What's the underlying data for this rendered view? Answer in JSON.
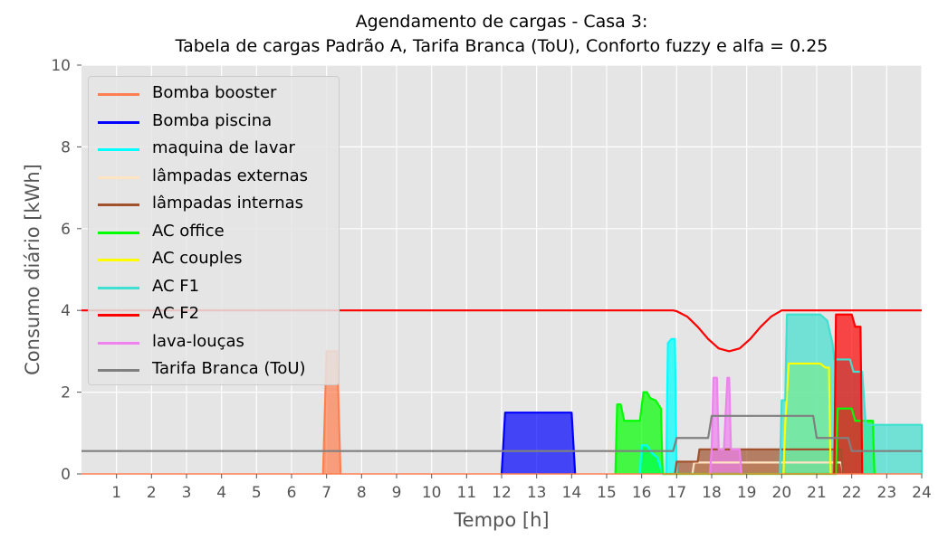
{
  "chart_data": {
    "type": "area",
    "title": "Agendamento de cargas - Casa 3:",
    "subtitle": "Tabela de cargas Padrão A, Tarifa Branca (ToU), Conforto fuzzy e alfa = 0.25",
    "xlabel": "Tempo [h]",
    "ylabel": "Consumo diário [kWh]",
    "xlim": [
      0,
      24
    ],
    "ylim": [
      0,
      10
    ],
    "xticks": [
      "1",
      "2",
      "3",
      "4",
      "5",
      "6",
      "7",
      "8",
      "9",
      "10",
      "11",
      "12",
      "13",
      "14",
      "15",
      "16",
      "17",
      "18",
      "19",
      "20",
      "21",
      "22",
      "23",
      "24"
    ],
    "yticks": [
      "0",
      "2",
      "4",
      "6",
      "8",
      "10"
    ],
    "grid": true,
    "legend_position": "upper-left",
    "series": [
      {
        "name": "Bomba booster",
        "color": "#ff7f50",
        "fill": true,
        "points": [
          [
            6.9,
            0
          ],
          [
            7.0,
            3.0
          ],
          [
            7.3,
            3.0
          ],
          [
            7.4,
            0
          ]
        ]
      },
      {
        "name": "Bomba piscina",
        "color": "#0000ff",
        "fill": true,
        "points": [
          [
            12.0,
            0
          ],
          [
            12.1,
            1.5
          ],
          [
            14.0,
            1.5
          ],
          [
            14.1,
            0
          ]
        ]
      },
      {
        "name": "maquina de lavar",
        "color": "#00ffff",
        "fill": true,
        "points": [
          [
            15.95,
            0
          ],
          [
            16.0,
            0.7
          ],
          [
            16.15,
            0.7
          ],
          [
            16.3,
            0.5
          ],
          [
            16.45,
            0.4
          ],
          [
            16.6,
            0
          ],
          [
            16.7,
            0
          ],
          [
            16.75,
            3.2
          ],
          [
            16.85,
            3.3
          ],
          [
            16.95,
            3.3
          ],
          [
            17.0,
            0
          ]
        ]
      },
      {
        "name": "lâmpadas externas",
        "color": "#ffe4c4",
        "fill": true,
        "points": [
          [
            17.45,
            0
          ],
          [
            17.5,
            0.28
          ],
          [
            21.7,
            0.28
          ],
          [
            21.75,
            0
          ]
        ]
      },
      {
        "name": "lâmpadas internas",
        "color": "#a0522d",
        "fill": true,
        "points": [
          [
            16.95,
            0
          ],
          [
            17.0,
            0.3
          ],
          [
            17.6,
            0.3
          ],
          [
            17.65,
            0.6
          ],
          [
            21.7,
            0.6
          ],
          [
            21.75,
            0
          ]
        ]
      },
      {
        "name": "AC office",
        "color": "#00ff00",
        "fill": true,
        "points": [
          [
            15.25,
            0
          ],
          [
            15.3,
            1.7
          ],
          [
            15.4,
            1.7
          ],
          [
            15.5,
            1.3
          ],
          [
            15.95,
            1.3
          ],
          [
            16.05,
            2.0
          ],
          [
            16.15,
            2.0
          ],
          [
            16.25,
            1.85
          ],
          [
            16.4,
            1.8
          ],
          [
            16.55,
            1.6
          ],
          [
            16.6,
            0
          ],
          [
            21.55,
            0
          ],
          [
            21.6,
            1.6
          ],
          [
            22.0,
            1.6
          ],
          [
            22.1,
            1.3
          ],
          [
            22.6,
            1.3
          ],
          [
            22.65,
            0
          ]
        ]
      },
      {
        "name": "AC couples",
        "color": "#ffff00",
        "fill": true,
        "points": [
          [
            20.05,
            0
          ],
          [
            20.1,
            1.2
          ],
          [
            20.2,
            2.7
          ],
          [
            21.1,
            2.7
          ],
          [
            21.25,
            2.6
          ],
          [
            21.35,
            2.6
          ],
          [
            21.4,
            0
          ]
        ]
      },
      {
        "name": "AC F1",
        "color": "#40e0d0",
        "fill": true,
        "points": [
          [
            19.95,
            0
          ],
          [
            20.0,
            1.8
          ],
          [
            20.1,
            1.8
          ],
          [
            20.15,
            3.9
          ],
          [
            21.1,
            3.9
          ],
          [
            21.3,
            3.75
          ],
          [
            21.45,
            3.2
          ],
          [
            21.5,
            2.8
          ],
          [
            21.95,
            2.8
          ],
          [
            22.05,
            2.5
          ],
          [
            22.2,
            2.5
          ],
          [
            22.3,
            2.5
          ],
          [
            22.4,
            1.2
          ],
          [
            24.0,
            1.2
          ],
          [
            24.0,
            0
          ]
        ]
      },
      {
        "name": "AC F2",
        "color": "#ff0000",
        "fill": true,
        "points": [
          [
            21.5,
            0
          ],
          [
            21.55,
            3.9
          ],
          [
            22.0,
            3.9
          ],
          [
            22.1,
            3.6
          ],
          [
            22.25,
            3.6
          ],
          [
            22.3,
            0
          ]
        ]
      },
      {
        "name": "lava-louças",
        "color": "#ee82ee",
        "fill": true,
        "points": [
          [
            17.95,
            0
          ],
          [
            18.0,
            0.6
          ],
          [
            18.05,
            2.35
          ],
          [
            18.15,
            2.35
          ],
          [
            18.2,
            0.6
          ],
          [
            18.35,
            0.6
          ],
          [
            18.45,
            2.35
          ],
          [
            18.5,
            2.35
          ],
          [
            18.55,
            0.6
          ],
          [
            18.8,
            0.6
          ],
          [
            18.85,
            0
          ]
        ]
      },
      {
        "name": "Tarifa Branca (ToU)",
        "color": "#808080",
        "fill": false,
        "points": [
          [
            0,
            0.56
          ],
          [
            16.9,
            0.56
          ],
          [
            17.0,
            0.88
          ],
          [
            17.9,
            0.88
          ],
          [
            18.0,
            1.42
          ],
          [
            20.9,
            1.42
          ],
          [
            21.0,
            0.88
          ],
          [
            21.9,
            0.88
          ],
          [
            22.0,
            0.56
          ],
          [
            24,
            0.56
          ]
        ]
      }
    ],
    "comfort_limit": {
      "color": "#ff0000",
      "points": [
        [
          0,
          4.0
        ],
        [
          16.9,
          4.0
        ],
        [
          17.0,
          3.98
        ],
        [
          17.3,
          3.85
        ],
        [
          17.6,
          3.6
        ],
        [
          17.9,
          3.3
        ],
        [
          18.2,
          3.07
        ],
        [
          18.5,
          3.0
        ],
        [
          18.8,
          3.07
        ],
        [
          19.1,
          3.3
        ],
        [
          19.4,
          3.6
        ],
        [
          19.7,
          3.85
        ],
        [
          20.0,
          4.0
        ],
        [
          24,
          4.0
        ]
      ]
    }
  }
}
